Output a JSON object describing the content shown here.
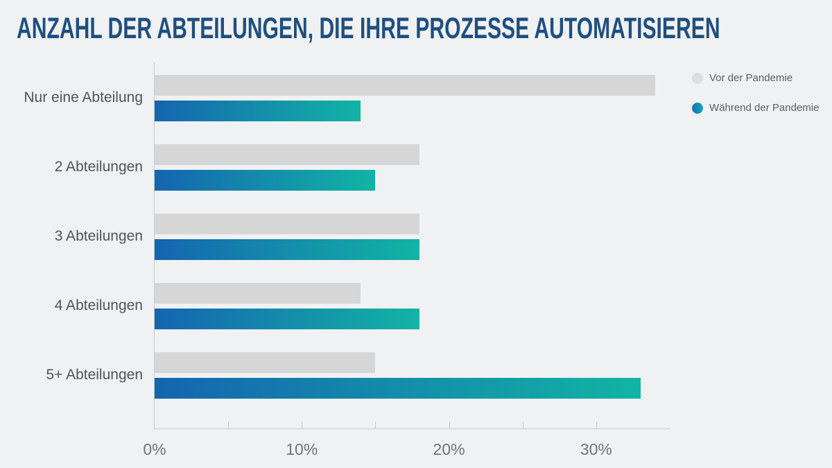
{
  "chart_data": {
    "type": "bar",
    "orientation": "horizontal",
    "title": "ANZAHL DER ABTEILUNGEN, DIE IHRE PROZESSE AUTOMATISIEREN",
    "categories": [
      "Nur eine Abteilung",
      "2 Abteilungen",
      "3 Abteilungen",
      "4 Abteilungen",
      "5+ Abteilungen"
    ],
    "series": [
      {
        "name": "Vor der Pandemie",
        "color": "#d6d6d7",
        "values": [
          34,
          18,
          18,
          14,
          15
        ]
      },
      {
        "name": "Während der Pandemie",
        "color_start": "#1565b0",
        "color_end": "#12b4a4",
        "values": [
          14,
          15,
          18,
          18,
          33
        ]
      }
    ],
    "x_axis": {
      "min": 0,
      "max": 35,
      "unit": "%",
      "minor_tick_step": 5,
      "labeled_ticks": [
        0,
        10,
        20,
        30
      ],
      "tick_labels": [
        "0%",
        "10%",
        "20%",
        "30%"
      ]
    },
    "legend": {
      "position": "top-right",
      "entries": [
        "Vor der Pandemie",
        "Während der Pandemie"
      ]
    },
    "colors": {
      "background": "#f0f1f2",
      "title": "#1e4f80",
      "axis_line": "#c7c9cc",
      "category_label": "#4c545e",
      "tick_label": "#6f7378",
      "legend_text": "#5a5e64"
    }
  }
}
